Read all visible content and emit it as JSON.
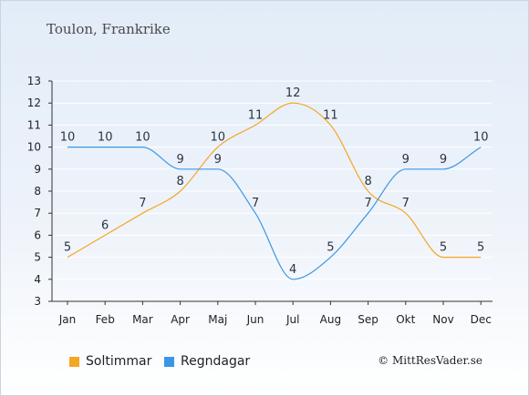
{
  "title": "Toulon, Frankrike",
  "credit": "© MittResVader.se",
  "chart_data": {
    "type": "line",
    "categories": [
      "Jan",
      "Feb",
      "Mar",
      "Apr",
      "Maj",
      "Jun",
      "Jul",
      "Aug",
      "Sep",
      "Okt",
      "Nov",
      "Dec"
    ],
    "ylim": [
      3,
      13
    ],
    "yticks": [
      3,
      4,
      5,
      6,
      7,
      8,
      9,
      10,
      11,
      12,
      13
    ],
    "series": [
      {
        "name": "Soltimmar",
        "color": "#f5a623",
        "values": [
          5,
          6,
          7,
          8,
          10,
          11,
          12,
          11,
          8,
          7,
          5,
          5
        ]
      },
      {
        "name": "Regndagar",
        "color": "#3a97e6",
        "values": [
          10,
          10,
          10,
          9,
          9,
          7,
          4,
          5,
          7,
          9,
          9,
          10
        ]
      }
    ]
  }
}
